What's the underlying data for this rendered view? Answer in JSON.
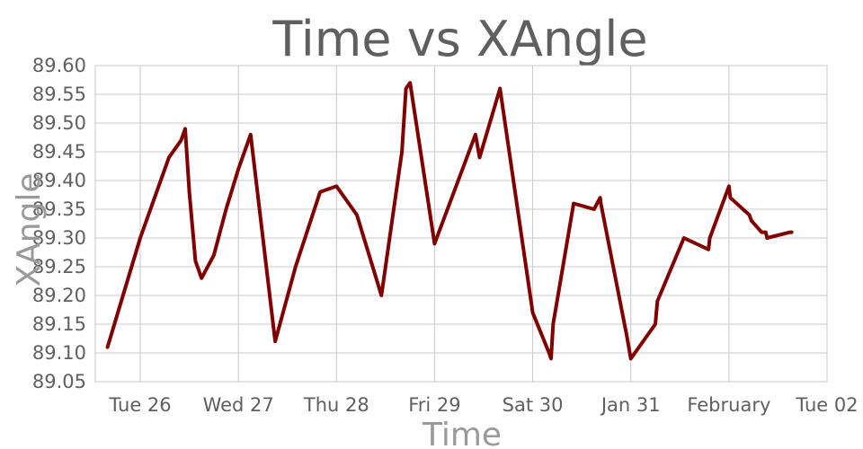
{
  "chart_data": {
    "type": "line",
    "title": "Time vs XAngle",
    "xlabel": "Time",
    "ylabel": "XAngle",
    "x_tick_labels": [
      "Tue 26",
      "Wed 27",
      "Thu 28",
      "Fri 29",
      "Sat 30",
      "Jan 31",
      "February",
      "Tue 02"
    ],
    "y_tick_labels": [
      "89.05",
      "89.10",
      "89.15",
      "89.20",
      "89.25",
      "89.30",
      "89.35",
      "89.40",
      "89.45",
      "89.50",
      "89.55",
      "89.60"
    ],
    "ylim": [
      89.05,
      89.6
    ],
    "xlim": [
      "2016-01-25T13:00",
      "2016-02-02T00:00"
    ],
    "grid": true,
    "series": [
      {
        "color": "#800000",
        "x": [
          "2016-01-25T16:00",
          "2016-01-26T00:00",
          "2016-01-26T07:00",
          "2016-01-26T10:00",
          "2016-01-26T11:00",
          "2016-01-26T12:00",
          "2016-01-26T13:30",
          "2016-01-26T15:00",
          "2016-01-26T18:00",
          "2016-01-26T21:00",
          "2016-01-27T00:00",
          "2016-01-27T03:00",
          "2016-01-27T09:00",
          "2016-01-27T14:00",
          "2016-01-27T20:00",
          "2016-01-28T00:00",
          "2016-01-28T05:00",
          "2016-01-28T11:00",
          "2016-01-28T16:00",
          "2016-01-28T17:00",
          "2016-01-28T18:00",
          "2016-01-29T00:00",
          "2016-01-29T10:00",
          "2016-01-29T11:00",
          "2016-01-29T16:00",
          "2016-01-30T00:00",
          "2016-01-30T04:00",
          "2016-01-30T04:30",
          "2016-01-30T05:00",
          "2016-01-30T10:00",
          "2016-01-30T15:00",
          "2016-01-30T16:30",
          "2016-01-30T16:40",
          "2016-01-30T23:00",
          "2016-01-31T00:00",
          "2016-01-31T06:00",
          "2016-01-31T06:30",
          "2016-01-31T13:00",
          "2016-01-31T19:00",
          "2016-01-31T19:20",
          "2016-02-01T00:00",
          "2016-02-01T00:20",
          "2016-02-01T05:00",
          "2016-02-01T05:30",
          "2016-02-01T08:00",
          "2016-02-01T09:00",
          "2016-02-01T09:20",
          "2016-02-01T15:00",
          "2016-02-01T15:20"
        ],
        "y": [
          89.11,
          89.3,
          89.44,
          89.47,
          89.49,
          89.38,
          89.26,
          89.23,
          89.27,
          89.35,
          89.42,
          89.48,
          89.12,
          89.25,
          89.38,
          89.39,
          89.34,
          89.2,
          89.45,
          89.56,
          89.57,
          89.29,
          89.48,
          89.44,
          89.56,
          89.17,
          89.1,
          89.09,
          89.15,
          89.36,
          89.35,
          89.37,
          89.36,
          89.13,
          89.09,
          89.15,
          89.19,
          89.3,
          89.28,
          89.3,
          89.39,
          89.37,
          89.34,
          89.33,
          89.31,
          89.31,
          89.3,
          89.31,
          89.31
        ]
      }
    ]
  }
}
